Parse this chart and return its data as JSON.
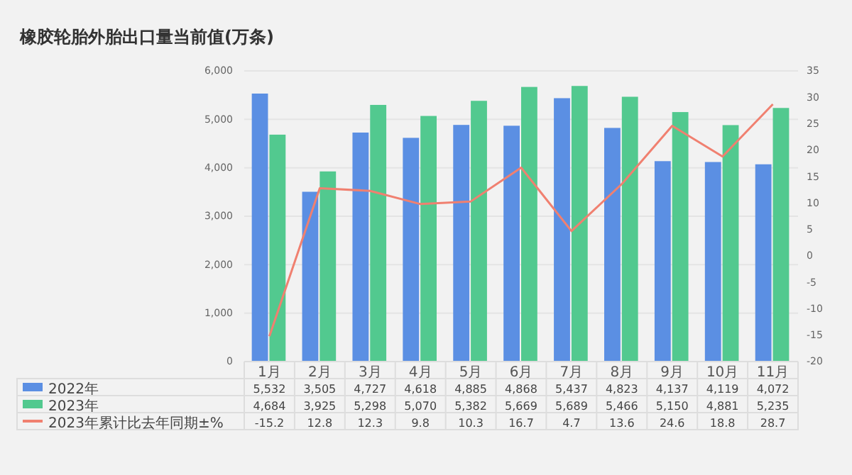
{
  "chart_data": {
    "type": "bar",
    "title": "橡胶轮胎外胎出口量当前值(万条)",
    "categories": [
      "1月",
      "2月",
      "3月",
      "4月",
      "5月",
      "6月",
      "7月",
      "8月",
      "9月",
      "10月",
      "11月"
    ],
    "series": [
      {
        "name": "2022年",
        "color": "#5b8fe3",
        "values": [
          5532,
          3505,
          4727,
          4618,
          4885,
          4868,
          5437,
          4823,
          4137,
          4119,
          4072
        ],
        "value_labels": [
          "5,532",
          "3,505",
          "4,727",
          "4,618",
          "4,885",
          "4,868",
          "5,437",
          "4,823",
          "4,137",
          "4,119",
          "4,072"
        ]
      },
      {
        "name": "2023年",
        "color": "#52c98f",
        "values": [
          4684,
          3925,
          5298,
          5070,
          5382,
          5669,
          5689,
          5466,
          5150,
          4881,
          5235
        ],
        "value_labels": [
          "4,684",
          "3,925",
          "5,298",
          "5,070",
          "5,382",
          "5,669",
          "5,689",
          "5,466",
          "5,150",
          "4,881",
          "5,235"
        ]
      },
      {
        "name": "2023年累计比去年同期±%",
        "type": "line",
        "axis": "y2",
        "color": "#f08070",
        "values": [
          -15.2,
          12.8,
          12.3,
          9.8,
          10.3,
          16.7,
          4.7,
          13.6,
          24.6,
          18.8,
          28.7
        ],
        "value_labels": [
          "-15.2",
          "12.8",
          "12.3",
          "9.8",
          "10.3",
          "16.7",
          "4.7",
          "13.6",
          "24.6",
          "18.8",
          "28.7"
        ]
      }
    ],
    "ylim": [
      0,
      6000
    ],
    "yticks": [
      {
        "value": 0,
        "label": "0"
      },
      {
        "value": 1000,
        "label": "1,000"
      },
      {
        "value": 2000,
        "label": "2,000"
      },
      {
        "value": 3000,
        "label": "3,000"
      },
      {
        "value": 4000,
        "label": "4,000"
      },
      {
        "value": 5000,
        "label": "5,000"
      },
      {
        "value": 6000,
        "label": "6,000"
      }
    ],
    "y2lim": [
      -20,
      35
    ],
    "y2ticks": [
      -20,
      -15,
      -10,
      -5,
      0,
      5,
      10,
      15,
      20,
      25,
      30,
      35
    ],
    "grid": "y",
    "legend": "bottom left"
  }
}
